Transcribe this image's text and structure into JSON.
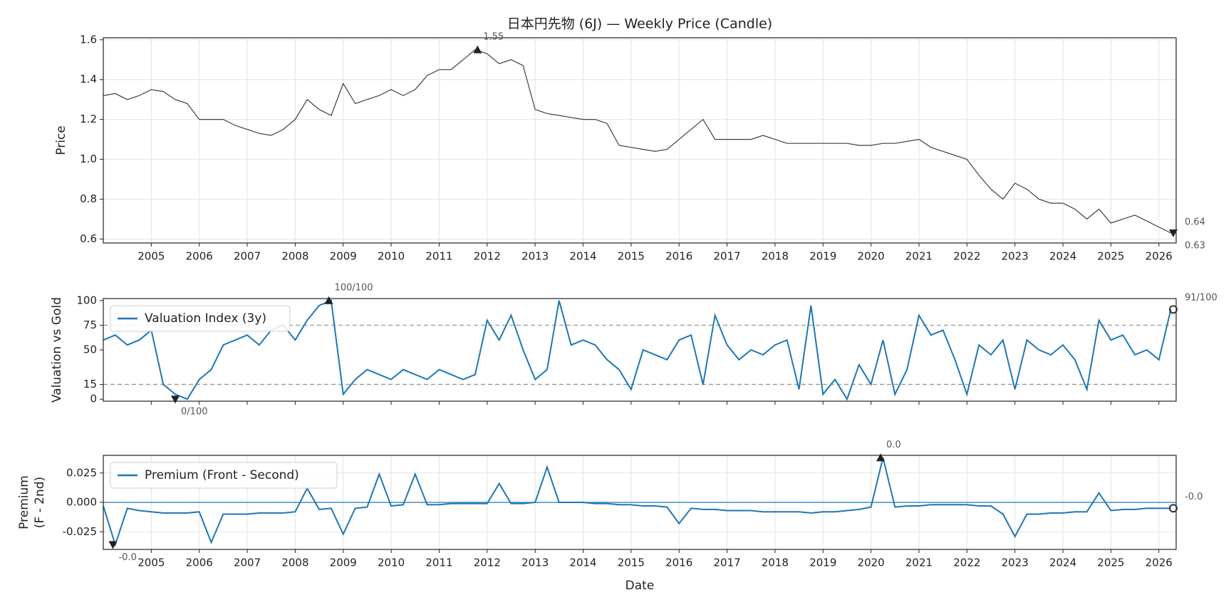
{
  "chart_data": [
    {
      "type": "line",
      "title": "日本円先物 (6J) — Weekly Price (Candle)",
      "ylabel": "Price",
      "show_xtick_labels": true,
      "grid": true,
      "x": [
        2004.0,
        2004.25,
        2004.5,
        2004.75,
        2005.0,
        2005.25,
        2005.5,
        2005.75,
        2006.0,
        2006.25,
        2006.5,
        2006.75,
        2007.0,
        2007.25,
        2007.5,
        2007.75,
        2008.0,
        2008.25,
        2008.5,
        2008.75,
        2009.0,
        2009.25,
        2009.5,
        2009.75,
        2010.0,
        2010.25,
        2010.5,
        2010.75,
        2011.0,
        2011.25,
        2011.5,
        2011.75,
        2012.0,
        2012.25,
        2012.5,
        2012.75,
        2013.0,
        2013.25,
        2013.5,
        2013.75,
        2014.0,
        2014.25,
        2014.5,
        2014.75,
        2015.0,
        2015.25,
        2015.5,
        2015.75,
        2016.0,
        2016.25,
        2016.5,
        2016.75,
        2017.0,
        2017.25,
        2017.5,
        2017.75,
        2018.0,
        2018.25,
        2018.5,
        2018.75,
        2019.0,
        2019.25,
        2019.5,
        2019.75,
        2020.0,
        2020.25,
        2020.5,
        2020.75,
        2021.0,
        2021.25,
        2021.5,
        2021.75,
        2022.0,
        2022.25,
        2022.5,
        2022.75,
        2023.0,
        2023.25,
        2023.5,
        2023.75,
        2024.0,
        2024.25,
        2024.5,
        2024.75,
        2025.0,
        2025.25,
        2025.5,
        2025.75,
        2026.0,
        2026.25
      ],
      "series": [
        {
          "color": "#404040",
          "values": [
            1.32,
            1.33,
            1.3,
            1.32,
            1.35,
            1.34,
            1.3,
            1.28,
            1.2,
            1.2,
            1.2,
            1.17,
            1.15,
            1.13,
            1.12,
            1.15,
            1.2,
            1.3,
            1.25,
            1.22,
            1.38,
            1.28,
            1.3,
            1.32,
            1.35,
            1.32,
            1.35,
            1.42,
            1.45,
            1.45,
            1.5,
            1.55,
            1.53,
            1.48,
            1.5,
            1.47,
            1.25,
            1.23,
            1.22,
            1.21,
            1.2,
            1.2,
            1.18,
            1.07,
            1.06,
            1.05,
            1.04,
            1.05,
            1.1,
            1.15,
            1.2,
            1.1,
            1.1,
            1.1,
            1.1,
            1.12,
            1.1,
            1.08,
            1.08,
            1.08,
            1.08,
            1.08,
            1.08,
            1.07,
            1.07,
            1.08,
            1.08,
            1.09,
            1.1,
            1.06,
            1.04,
            1.02,
            1.0,
            0.92,
            0.85,
            0.8,
            0.88,
            0.85,
            0.8,
            0.78,
            0.78,
            0.75,
            0.7,
            0.75,
            0.68,
            0.7,
            0.72,
            0.69,
            0.66,
            0.63
          ]
        }
      ],
      "xlim": [
        2004.0,
        2026.36
      ],
      "xticks": [
        2005,
        2006,
        2007,
        2008,
        2009,
        2010,
        2011,
        2012,
        2013,
        2014,
        2015,
        2016,
        2017,
        2018,
        2019,
        2020,
        2021,
        2022,
        2023,
        2024,
        2025,
        2026
      ],
      "ylim": [
        0.58,
        1.61
      ],
      "yticks": [
        0.6,
        0.8,
        {
          "value": 1.0,
          "label": "1.0"
        },
        1.2,
        1.4,
        1.6
      ],
      "annotations": [
        {
          "label": "1.55",
          "x": 2011.8,
          "y": 1.55,
          "marker": "up"
        },
        {
          "label": "0.64",
          "x": 2026.3,
          "y": 0.64,
          "marker": "none"
        },
        {
          "label": "0.63",
          "x": 2026.3,
          "y": 0.63,
          "marker": "down"
        }
      ]
    },
    {
      "type": "line",
      "ylabel": "Valuation vs Gold",
      "legend": "upper left",
      "show_xtick_labels": false,
      "grid": false,
      "x": [
        2004.0,
        2004.25,
        2004.5,
        2004.75,
        2005.0,
        2005.25,
        2005.5,
        2005.75,
        2006.0,
        2006.25,
        2006.5,
        2006.75,
        2007.0,
        2007.25,
        2007.5,
        2007.75,
        2008.0,
        2008.25,
        2008.5,
        2008.75,
        2009.0,
        2009.25,
        2009.5,
        2009.75,
        2010.0,
        2010.25,
        2010.5,
        2010.75,
        2011.0,
        2011.25,
        2011.5,
        2011.75,
        2012.0,
        2012.25,
        2012.5,
        2012.75,
        2013.0,
        2013.25,
        2013.5,
        2013.75,
        2014.0,
        2014.25,
        2014.5,
        2014.75,
        2015.0,
        2015.25,
        2015.5,
        2015.75,
        2016.0,
        2016.25,
        2016.5,
        2016.75,
        2017.0,
        2017.25,
        2017.5,
        2017.75,
        2018.0,
        2018.25,
        2018.5,
        2018.75,
        2019.0,
        2019.25,
        2019.5,
        2019.75,
        2020.0,
        2020.25,
        2020.5,
        2020.75,
        2021.0,
        2021.25,
        2021.5,
        2021.75,
        2022.0,
        2022.25,
        2022.5,
        2022.75,
        2023.0,
        2023.25,
        2023.5,
        2023.75,
        2024.0,
        2024.25,
        2024.5,
        2024.75,
        2025.0,
        2025.25,
        2025.5,
        2025.75,
        2026.0,
        2026.25
      ],
      "series": [
        {
          "name": "Valuation Index (3y)",
          "color": "#1f77b4",
          "values": [
            60,
            65,
            55,
            60,
            70,
            15,
            5,
            0,
            20,
            30,
            55,
            60,
            65,
            55,
            70,
            75,
            60,
            80,
            95,
            100,
            5,
            20,
            30,
            25,
            20,
            30,
            25,
            20,
            30,
            25,
            20,
            25,
            80,
            60,
            85,
            50,
            20,
            30,
            100,
            55,
            60,
            55,
            40,
            30,
            10,
            50,
            45,
            40,
            60,
            65,
            15,
            85,
            55,
            40,
            50,
            45,
            55,
            60,
            10,
            95,
            5,
            20,
            0,
            35,
            15,
            60,
            5,
            30,
            85,
            65,
            70,
            40,
            5,
            55,
            45,
            60,
            10,
            60,
            50,
            45,
            55,
            40,
            10,
            80,
            60,
            65,
            45,
            50,
            40,
            91
          ]
        }
      ],
      "xlim": [
        2004.0,
        2026.36
      ],
      "xticks": [
        2005,
        2006,
        2007,
        2008,
        2009,
        2010,
        2011,
        2012,
        2013,
        2014,
        2015,
        2016,
        2017,
        2018,
        2019,
        2020,
        2021,
        2022,
        2023,
        2024,
        2025,
        2026
      ],
      "ylim": [
        -2,
        102
      ],
      "yticks": [
        0,
        15,
        50,
        75,
        100
      ],
      "hlines": [
        75,
        15
      ],
      "hline_style": "dashed",
      "annotations": [
        {
          "label": "100/100",
          "x": 2008.7,
          "y": 100,
          "marker": "up"
        },
        {
          "label": "0/100",
          "x": 2005.5,
          "y": 0,
          "marker": "down"
        },
        {
          "label": "91/100",
          "x": 2026.3,
          "y": 91,
          "marker": "circle"
        }
      ]
    },
    {
      "type": "line",
      "ylabel": [
        "Premium",
        "(F - 2nd)"
      ],
      "xlabel": "Date",
      "legend": "upper left",
      "show_xtick_labels": true,
      "grid": true,
      "x": [
        2004.0,
        2004.25,
        2004.5,
        2004.75,
        2005.0,
        2005.25,
        2005.5,
        2005.75,
        2006.0,
        2006.25,
        2006.5,
        2006.75,
        2007.0,
        2007.25,
        2007.5,
        2007.75,
        2008.0,
        2008.25,
        2008.5,
        2008.75,
        2009.0,
        2009.25,
        2009.5,
        2009.75,
        2010.0,
        2010.25,
        2010.5,
        2010.75,
        2011.0,
        2011.25,
        2011.5,
        2011.75,
        2012.0,
        2012.25,
        2012.5,
        2012.75,
        2013.0,
        2013.25,
        2013.5,
        2013.75,
        2014.0,
        2014.25,
        2014.5,
        2014.75,
        2015.0,
        2015.25,
        2015.5,
        2015.75,
        2016.0,
        2016.25,
        2016.5,
        2016.75,
        2017.0,
        2017.25,
        2017.5,
        2017.75,
        2018.0,
        2018.25,
        2018.5,
        2018.75,
        2019.0,
        2019.25,
        2019.5,
        2019.75,
        2020.0,
        2020.25,
        2020.5,
        2020.75,
        2021.0,
        2021.25,
        2021.5,
        2021.75,
        2022.0,
        2022.25,
        2022.5,
        2022.75,
        2023.0,
        2023.25,
        2023.5,
        2023.75,
        2024.0,
        2024.25,
        2024.5,
        2024.75,
        2025.0,
        2025.25,
        2025.5,
        2025.75,
        2026.0,
        2026.25
      ],
      "series": [
        {
          "name": "Premium (Front - Second)",
          "color": "#1f77b4",
          "values": [
            -0.003,
            -0.036,
            -0.005,
            -0.007,
            -0.008,
            -0.009,
            -0.009,
            -0.009,
            -0.008,
            -0.034,
            -0.01,
            -0.01,
            -0.01,
            -0.009,
            -0.009,
            -0.009,
            -0.008,
            0.012,
            -0.006,
            -0.005,
            -0.027,
            -0.005,
            -0.004,
            0.024,
            -0.003,
            -0.002,
            0.024,
            -0.002,
            -0.002,
            -0.001,
            -0.001,
            -0.001,
            -0.001,
            0.016,
            -0.001,
            -0.001,
            0.0,
            0.03,
            0.0,
            0.0,
            0.0,
            -0.001,
            -0.001,
            -0.002,
            -0.002,
            -0.003,
            -0.003,
            -0.004,
            -0.018,
            -0.005,
            -0.006,
            -0.006,
            -0.007,
            -0.007,
            -0.007,
            -0.008,
            -0.008,
            -0.008,
            -0.008,
            -0.009,
            -0.008,
            -0.008,
            -0.007,
            -0.006,
            -0.004,
            0.038,
            -0.004,
            -0.003,
            -0.003,
            -0.002,
            -0.002,
            -0.002,
            -0.002,
            -0.003,
            -0.003,
            -0.01,
            -0.029,
            -0.01,
            -0.01,
            -0.009,
            -0.009,
            -0.008,
            -0.008,
            0.008,
            -0.007,
            -0.006,
            -0.006,
            -0.005,
            -0.005,
            -0.005
          ]
        }
      ],
      "xlim": [
        2004.0,
        2026.36
      ],
      "xticks": [
        2005,
        2006,
        2007,
        2008,
        2009,
        2010,
        2011,
        2012,
        2013,
        2014,
        2015,
        2016,
        2017,
        2018,
        2019,
        2020,
        2021,
        2022,
        2023,
        2024,
        2025,
        2026
      ],
      "ylim": [
        -0.04,
        0.04
      ],
      "yticks": [
        {
          "value": -0.025,
          "label": "-0.025"
        },
        {
          "value": 0,
          "label": "0.000"
        },
        {
          "value": 0.025,
          "label": "0.025"
        }
      ],
      "hlines": [
        0
      ],
      "hline_style": "solid",
      "annotations": [
        {
          "label": "0.0",
          "x": 2020.2,
          "y": 0.038,
          "marker": "up"
        },
        {
          "label": "-0.0",
          "x": 2004.2,
          "y": -0.036,
          "marker": "down"
        },
        {
          "label": "-0.0",
          "x": 2026.3,
          "y": -0.005,
          "marker": "circle"
        }
      ]
    }
  ]
}
